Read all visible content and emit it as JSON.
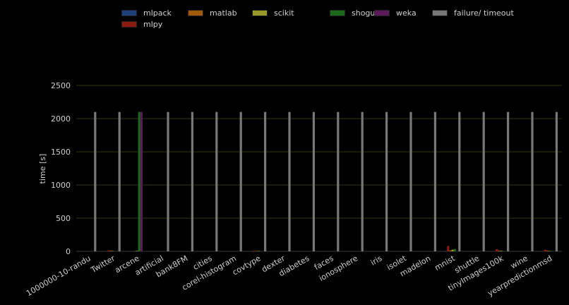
{
  "chart_data": {
    "type": "bar",
    "title": "",
    "xlabel": "",
    "ylabel": "time [s]",
    "ylim": [
      0,
      2500
    ],
    "yticks": [
      0,
      500,
      1000,
      1500,
      2000,
      2500
    ],
    "grid": true,
    "legend_position": "top",
    "categories": [
      "1000000-10-randu",
      "Twitter",
      "arcene",
      "artificial",
      "bank8FM",
      "cities",
      "corel-histogram",
      "covtype",
      "dexter",
      "diabetes",
      "faces",
      "ionosphere",
      "iris",
      "isolet",
      "madelon",
      "mnist",
      "shuttle",
      "tinyImages100k",
      "wine",
      "yearpredictionmsd"
    ],
    "series": [
      {
        "name": "mlpack",
        "color": "#1f3f7a",
        "values": [
          0,
          3,
          5,
          0,
          0,
          0,
          0,
          3,
          0,
          0,
          0,
          0,
          0,
          0,
          0,
          8,
          0,
          3,
          0,
          2
        ]
      },
      {
        "name": "mlpy",
        "color": "#8b1a10",
        "values": [
          0,
          14,
          0,
          0,
          0,
          0,
          0,
          10,
          0,
          0,
          0,
          0,
          0,
          0,
          0,
          80,
          0,
          32,
          0,
          25
        ]
      },
      {
        "name": "matlab",
        "color": "#a05a0a",
        "values": [
          0,
          10,
          3,
          0,
          0,
          0,
          0,
          5,
          0,
          0,
          0,
          0,
          0,
          0,
          0,
          15,
          0,
          12,
          0,
          10
        ]
      },
      {
        "name": "scikit",
        "color": "#9a9a2a",
        "values": [
          0,
          6,
          8,
          0,
          0,
          0,
          0,
          6,
          0,
          0,
          0,
          0,
          0,
          0,
          0,
          25,
          0,
          8,
          0,
          6
        ]
      },
      {
        "name": "shogun",
        "color": "#1a6a1a",
        "values": [
          0,
          4,
          2100,
          0,
          0,
          0,
          0,
          4,
          0,
          0,
          0,
          0,
          0,
          0,
          0,
          35,
          0,
          6,
          0,
          4
        ]
      },
      {
        "name": "weka",
        "color": "#5a1a5a",
        "values": [
          0,
          0,
          2100,
          0,
          0,
          0,
          0,
          0,
          0,
          0,
          0,
          0,
          0,
          0,
          0,
          0,
          0,
          0,
          0,
          0
        ]
      },
      {
        "name": "failure/ timeout",
        "color": "#777777",
        "values": [
          2100,
          2100,
          0,
          2100,
          2100,
          2100,
          2100,
          2100,
          2100,
          2100,
          2100,
          2100,
          2100,
          2100,
          2100,
          2100,
          2100,
          2100,
          2100,
          2100
        ]
      }
    ]
  }
}
